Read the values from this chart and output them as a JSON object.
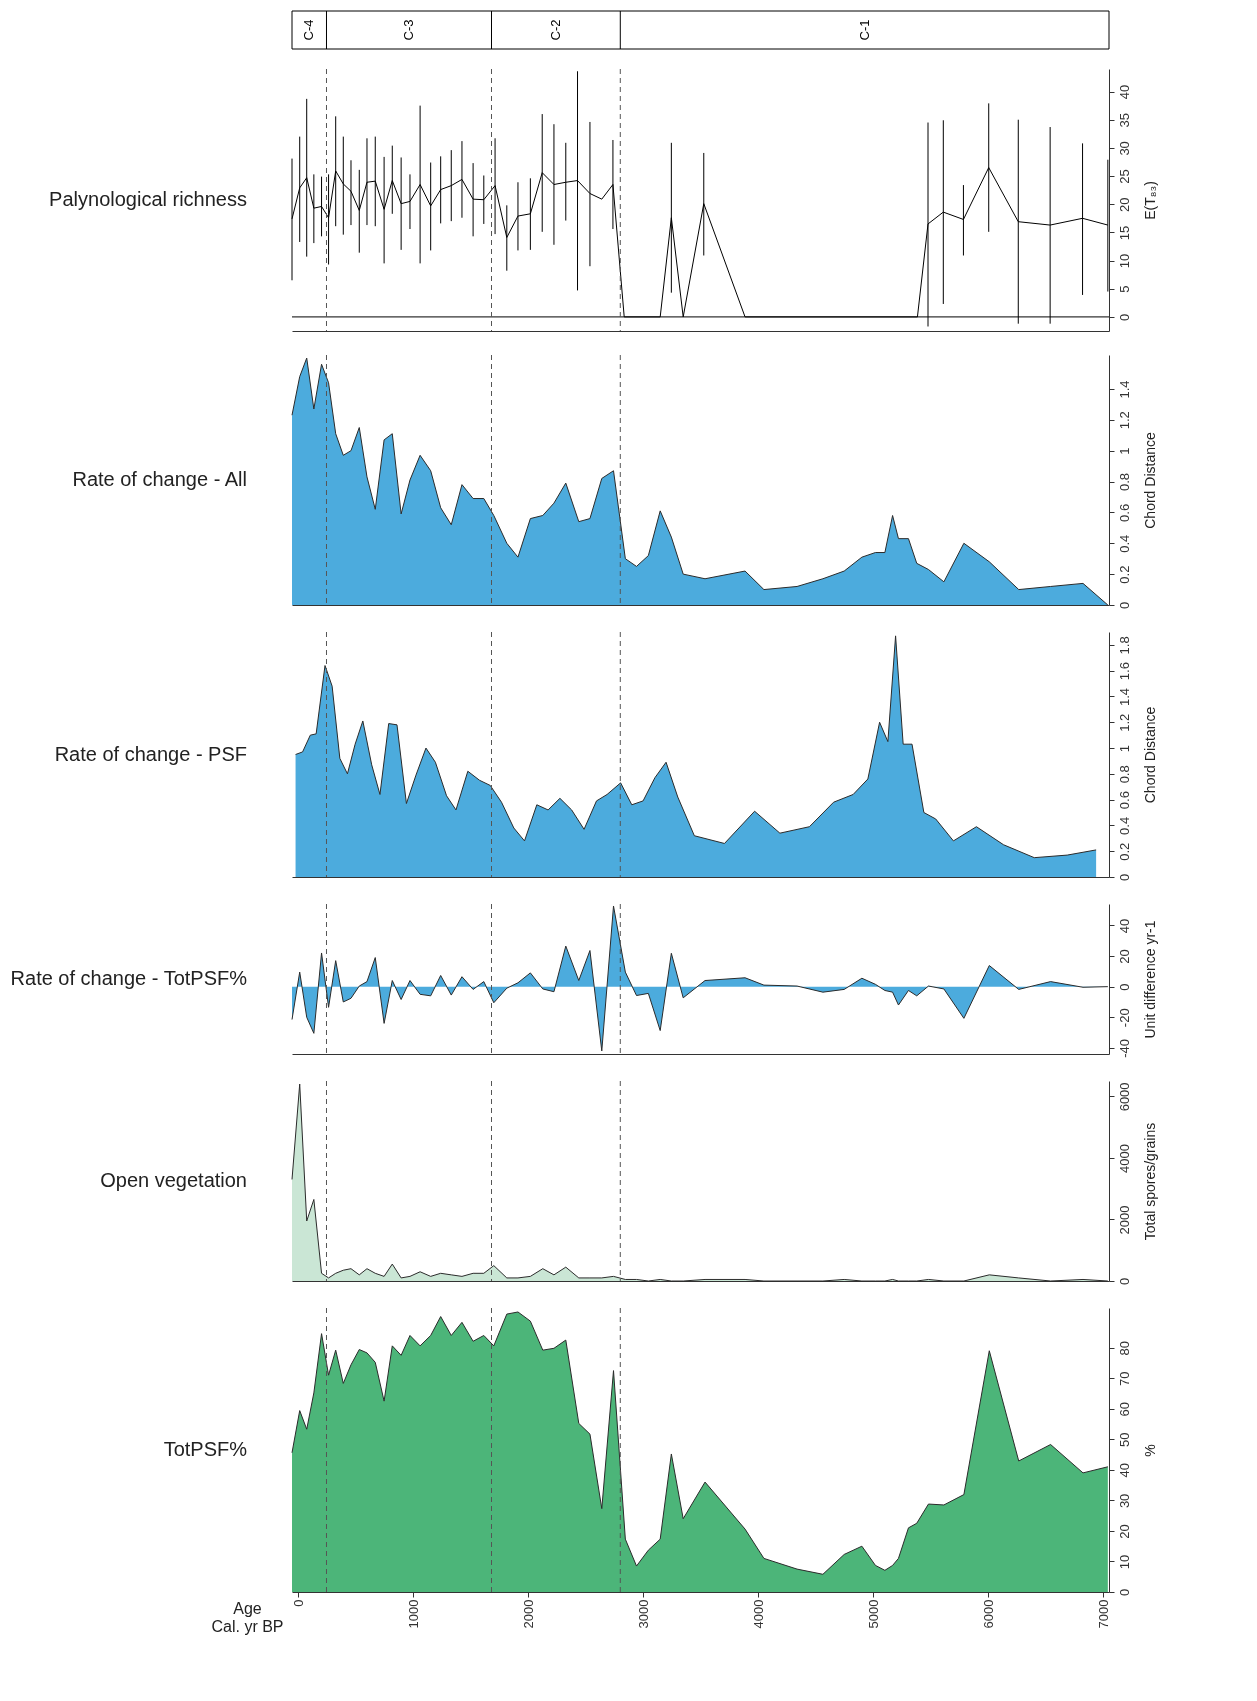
{
  "chart_data": [
    {
      "type": "line",
      "title": "Palynological richness",
      "ylabel": "E(T₈₃)",
      "tick_labels": "y",
      "color": "#000000",
      "xlim": [
        -55,
        7050
      ],
      "ylim": [
        -2.5,
        44
      ],
      "yticks": [
        0,
        5,
        10,
        15,
        20,
        25,
        30,
        35,
        40
      ],
      "annotations": [
        "C-4",
        "C-3",
        "C-2",
        "C-1"
      ],
      "x": [
        -55,
        12,
        73,
        135,
        202,
        263,
        325,
        391,
        458,
        530,
        597,
        669,
        746,
        817,
        894,
        971,
        1059,
        1151,
        1238,
        1330,
        1423,
        1520,
        1613,
        1711,
        1813,
        1910,
        2018,
        2121,
        2223,
        2326,
        2428,
        2536,
        2639,
        2736,
        2834,
        3147,
        3244,
        3347,
        3526,
        3885,
        5384,
        5476,
        5609,
        5784,
        6004,
        6261,
        6538,
        6820,
        7040
      ],
      "values": [
        17.4,
        22.9,
        24.7,
        19.3,
        19.6,
        17.6,
        25.9,
        23.6,
        22.3,
        18.9,
        23.9,
        24.1,
        19.1,
        24.2,
        20.1,
        20.5,
        23.5,
        19.7,
        22.6,
        23.3,
        24.4,
        20.9,
        20.8,
        23.3,
        14.1,
        17.9,
        18.3,
        25.6,
        23.5,
        23.9,
        24.2,
        21.9,
        20.9,
        23.5,
        0,
        0,
        17.6,
        0,
        20.1,
        0,
        0,
        16.5,
        18.6,
        17.3,
        26.5,
        16.9,
        16.3,
        17.5,
        16.3
      ],
      "errors": [
        [
          6.5,
          28.1
        ],
        [
          13.3,
          32
        ],
        [
          10.7,
          38.7
        ],
        [
          13.1,
          25.3
        ],
        [
          14.3,
          24.9
        ],
        [
          9.3,
          25.3
        ],
        [
          16.1,
          35.6
        ],
        [
          14.6,
          32
        ],
        [
          16.3,
          27.8
        ],
        [
          11.4,
          26.1
        ],
        [
          16.3,
          31.7
        ],
        [
          16.1,
          32
        ],
        [
          9.5,
          28.4
        ],
        [
          18.3,
          30.4
        ],
        [
          11.9,
          28.3
        ],
        [
          15.6,
          25.3
        ],
        [
          9.5,
          37.5
        ],
        [
          11.8,
          27.4
        ],
        [
          16.6,
          28.5
        ],
        [
          17,
          29.6
        ],
        [
          17.6,
          31.2
        ],
        [
          14.3,
          27.3
        ],
        [
          16.5,
          25.1
        ],
        [
          14.7,
          31.7
        ],
        [
          8.2,
          19.8
        ],
        [
          11.8,
          23.9
        ],
        [
          11.9,
          24.6
        ],
        [
          15.1,
          36
        ],
        [
          12.8,
          34.2
        ],
        [
          17.1,
          30.9
        ],
        [
          4.7,
          43.6
        ],
        [
          9,
          34.6
        ],
        null,
        [
          15.6,
          31.4
        ],
        null,
        null,
        [
          4.3,
          30.9
        ],
        null,
        [
          10.9,
          29.1
        ],
        null,
        null,
        [
          -1.7,
          34.5
        ],
        [
          2.3,
          34.9
        ],
        [
          10.9,
          23.4
        ],
        [
          15.1,
          37.9
        ],
        [
          -1.2,
          35
        ],
        [
          -1.2,
          33.7
        ],
        [
          3.9,
          30.8
        ],
        [
          4.5,
          27.9
        ]
      ],
      "ref_lines": [
        {
          "axis": "y",
          "value": 0,
          "color": "#000000",
          "line_style": "solid"
        },
        {
          "axis": "x",
          "value": 245,
          "color": "#555555",
          "line_style": "dashed"
        },
        {
          "axis": "x",
          "value": 1680,
          "color": "#555555",
          "line_style": "dashed"
        },
        {
          "axis": "x",
          "value": 2800,
          "color": "#555555",
          "line_style": "dashed"
        }
      ]
    },
    {
      "type": "area",
      "title": "Rate of change - All",
      "ylabel": "Chord Distance",
      "tick_labels": "y",
      "color": "#0088cf",
      "xlim": [
        -55,
        7050
      ],
      "ylim": [
        0,
        1.62
      ],
      "yticks": [
        0,
        0.2,
        0.4,
        0.6,
        0.8,
        1,
        1.2,
        1.4
      ],
      "x": [
        -55,
        12,
        73,
        135,
        202,
        263,
        325,
        391,
        458,
        530,
        597,
        669,
        746,
        817,
        894,
        971,
        1059,
        1151,
        1238,
        1330,
        1423,
        1520,
        1613,
        1700,
        1813,
        1910,
        2018,
        2126,
        2223,
        2326,
        2439,
        2536,
        2639,
        2741,
        2844,
        2941,
        3044,
        3147,
        3244,
        3347,
        3537,
        3885,
        4049,
        4337,
        4562,
        4747,
        4901,
        5019,
        5101,
        5168,
        5219,
        5306,
        5378,
        5480,
        5614,
        5788,
        6009,
        6265,
        6542,
        6824,
        7040
      ],
      "values": [
        1.23,
        1.48,
        1.6,
        1.27,
        1.56,
        1.44,
        1.11,
        0.97,
        1.0,
        1.15,
        0.83,
        0.62,
        1.07,
        1.11,
        0.59,
        0.81,
        0.97,
        0.87,
        0.63,
        0.52,
        0.78,
        0.69,
        0.69,
        0.58,
        0.4,
        0.31,
        0.56,
        0.58,
        0.66,
        0.79,
        0.54,
        0.56,
        0.82,
        0.87,
        0.3,
        0.25,
        0.32,
        0.61,
        0.44,
        0.2,
        0.17,
        0.22,
        0.1,
        0.12,
        0.17,
        0.22,
        0.31,
        0.34,
        0.34,
        0.58,
        0.43,
        0.43,
        0.27,
        0.23,
        0.15,
        0.4,
        0.28,
        0.1,
        0.12,
        0.14,
        0
      ],
      "ref_lines": [
        {
          "axis": "x",
          "value": 245,
          "color": "#555555",
          "line_style": "dashed"
        },
        {
          "axis": "x",
          "value": 1680,
          "color": "#555555",
          "line_style": "dashed"
        },
        {
          "axis": "x",
          "value": 2800,
          "color": "#555555",
          "line_style": "dashed"
        }
      ]
    },
    {
      "type": "area",
      "title": "Rate of change - PSF",
      "ylabel": "Chord Distance",
      "tick_labels": "y",
      "color": "#0088cf",
      "xlim": [
        -55,
        7050
      ],
      "ylim": [
        0,
        1.9
      ],
      "yticks": [
        0,
        0.2,
        0.4,
        0.6,
        0.8,
        1,
        1.2,
        1.4,
        1.6,
        1.8
      ],
      "x": [
        -24,
        37,
        104,
        155,
        232,
        294,
        361,
        427,
        494,
        561,
        638,
        710,
        786,
        858,
        940,
        1023,
        1110,
        1192,
        1289,
        1371,
        1474,
        1576,
        1669,
        1767,
        1874,
        1967,
        2074,
        2172,
        2275,
        2377,
        2485,
        2593,
        2685,
        2803,
        2900,
        2998,
        3101,
        3198,
        3300,
        3444,
        3706,
        3968,
        4188,
        4445,
        4655,
        4825,
        4953,
        5055,
        5127,
        5194,
        5260,
        5337,
        5440,
        5543,
        5697,
        5897,
        6133,
        6400,
        6687,
        6938
      ],
      "values": [
        0.95,
        0.97,
        1.1,
        1.11,
        1.64,
        1.48,
        0.92,
        0.8,
        1.03,
        1.21,
        0.87,
        0.64,
        1.19,
        1.18,
        0.57,
        0.79,
        1.0,
        0.89,
        0.63,
        0.52,
        0.82,
        0.75,
        0.71,
        0.58,
        0.38,
        0.28,
        0.56,
        0.52,
        0.61,
        0.52,
        0.37,
        0.59,
        0.64,
        0.73,
        0.56,
        0.59,
        0.77,
        0.89,
        0.62,
        0.32,
        0.26,
        0.51,
        0.34,
        0.39,
        0.58,
        0.64,
        0.76,
        1.2,
        1.05,
        1.87,
        1.03,
        1.03,
        0.5,
        0.45,
        0.28,
        0.39,
        0.25,
        0.15,
        0.17,
        0.21
      ],
      "ref_lines": [
        {
          "axis": "x",
          "value": 245,
          "color": "#555555",
          "line_style": "dashed"
        },
        {
          "axis": "x",
          "value": 1680,
          "color": "#555555",
          "line_style": "dashed"
        },
        {
          "axis": "x",
          "value": 2800,
          "color": "#555555",
          "line_style": "dashed"
        }
      ]
    },
    {
      "type": "area",
      "title": "Rate of change - TotPSF%",
      "ylabel": "Unit difference yr-1",
      "tick_labels": "y",
      "color": "#0088cf",
      "xlim": [
        -55,
        7050
      ],
      "ylim": [
        -44,
        54
      ],
      "yticks": [
        -40,
        -20,
        0,
        20,
        40
      ],
      "x": [
        -55,
        12,
        73,
        135,
        202,
        263,
        325,
        391,
        458,
        530,
        597,
        669,
        746,
        817,
        894,
        971,
        1059,
        1151,
        1238,
        1330,
        1423,
        1520,
        1613,
        1700,
        1813,
        1910,
        2018,
        2126,
        2223,
        2326,
        2439,
        2536,
        2639,
        2741,
        2844,
        2941,
        3044,
        3147,
        3244,
        3347,
        3537,
        3885,
        4049,
        4337,
        4562,
        4747,
        4901,
        5019,
        5101,
        5168,
        5219,
        5306,
        5378,
        5480,
        5614,
        5788,
        6009,
        6265,
        6542,
        6824,
        7040
      ],
      "values": [
        -21.5,
        9.5,
        -20,
        -30.5,
        22,
        -13.5,
        17,
        -10,
        -7.6,
        0.4,
        3.3,
        19,
        -24,
        4,
        -8.4,
        4,
        -5,
        -6,
        7.3,
        -5.5,
        6.5,
        -1.8,
        3.3,
        -10.5,
        -1,
        2.5,
        9,
        -1.5,
        -3.3,
        26.5,
        4,
        23.6,
        -42,
        52.7,
        9.5,
        -5.8,
        -4.4,
        -28.7,
        21.8,
        -7.3,
        4,
        5.8,
        1,
        0.4,
        -3.6,
        -1.8,
        5.5,
        1.5,
        -2.5,
        -3.6,
        -12,
        -2.5,
        -6,
        0.4,
        -1.5,
        -20.7,
        13.8,
        -1.8,
        3.3,
        -0.4,
        0
      ],
      "ref_lines": [
        {
          "axis": "x",
          "value": 245,
          "color": "#555555",
          "line_style": "dashed"
        },
        {
          "axis": "x",
          "value": 1680,
          "color": "#555555",
          "line_style": "dashed"
        },
        {
          "axis": "x",
          "value": 2800,
          "color": "#555555",
          "line_style": "dashed"
        }
      ]
    },
    {
      "type": "area",
      "title": "Open vegetation",
      "ylabel": "Total spores/grains",
      "tick_labels": "y",
      "color": "#b3dcc3",
      "xlim": [
        -55,
        7050
      ],
      "ylim": [
        0,
        6500
      ],
      "yticks": [
        0,
        2000,
        4000,
        6000
      ],
      "x": [
        -55,
        12,
        73,
        135,
        202,
        263,
        325,
        391,
        458,
        530,
        597,
        669,
        746,
        817,
        894,
        971,
        1059,
        1151,
        1238,
        1330,
        1423,
        1520,
        1613,
        1700,
        1813,
        1910,
        2018,
        2126,
        2223,
        2326,
        2439,
        2536,
        2639,
        2741,
        2844,
        2941,
        3044,
        3147,
        3244,
        3347,
        3537,
        3885,
        4049,
        4337,
        4562,
        4747,
        4901,
        5019,
        5101,
        5168,
        5219,
        5306,
        5378,
        5480,
        5614,
        5788,
        6009,
        6265,
        6542,
        6824,
        7040
      ],
      "values": [
        3300,
        6400,
        1950,
        2650,
        250,
        100,
        250,
        350,
        400,
        200,
        400,
        250,
        150,
        550,
        100,
        150,
        300,
        150,
        250,
        200,
        150,
        250,
        250,
        500,
        100,
        100,
        150,
        400,
        200,
        450,
        100,
        100,
        100,
        150,
        50,
        50,
        0,
        50,
        0,
        0,
        50,
        50,
        0,
        0,
        0,
        50,
        0,
        0,
        0,
        50,
        0,
        0,
        0,
        50,
        0,
        0,
        200,
        100,
        0,
        50,
        0
      ],
      "ref_lines": [
        {
          "axis": "x",
          "value": 245,
          "color": "#555555",
          "line_style": "dashed"
        },
        {
          "axis": "x",
          "value": 1680,
          "color": "#555555",
          "line_style": "dashed"
        },
        {
          "axis": "x",
          "value": 2800,
          "color": "#555555",
          "line_style": "dashed"
        }
      ]
    },
    {
      "type": "area",
      "title": "TotPSF%",
      "ylabel": "%",
      "xlabel": "Age",
      "annotations": [
        "Cal. yr BP"
      ],
      "color": "#009640",
      "xlim": [
        -55,
        7050
      ],
      "xticks": [
        0,
        1000,
        2000,
        3000,
        4000,
        5000,
        6000,
        7000
      ],
      "ylim": [
        0,
        93
      ],
      "yticks": [
        0,
        10,
        20,
        30,
        40,
        50,
        60,
        70,
        80
      ],
      "x": [
        -55,
        12,
        73,
        135,
        202,
        263,
        325,
        391,
        458,
        530,
        597,
        669,
        746,
        817,
        894,
        971,
        1059,
        1151,
        1238,
        1330,
        1423,
        1520,
        1613,
        1700,
        1813,
        1910,
        2018,
        2126,
        2223,
        2326,
        2439,
        2536,
        2639,
        2741,
        2844,
        2941,
        3044,
        3147,
        3244,
        3347,
        3537,
        3885,
        4049,
        4337,
        4562,
        4747,
        4901,
        5019,
        5101,
        5168,
        5219,
        5306,
        5378,
        5480,
        5614,
        5788,
        6009,
        6265,
        6542,
        6824,
        7040
      ],
      "values": [
        45.6,
        59.4,
        53.3,
        65.2,
        84.6,
        71,
        79.2,
        68.3,
        74.4,
        79.4,
        78.3,
        75.2,
        62.5,
        80.6,
        77.5,
        84,
        80.6,
        84,
        90.2,
        84,
        88.3,
        82.1,
        84,
        80.6,
        91,
        91.7,
        88.7,
        79.2,
        79.8,
        82.5,
        55.2,
        51.7,
        27.3,
        72.5,
        17.3,
        8.5,
        13.7,
        17.3,
        45.2,
        24,
        36,
        20.6,
        11,
        7.5,
        5.8,
        12.3,
        15,
        8.7,
        7.1,
        8.7,
        11,
        21,
        22.5,
        28.8,
        28.5,
        31.9,
        79,
        42.9,
        48.3,
        39,
        41
      ],
      "ref_lines": [
        {
          "axis": "x",
          "value": 245,
          "color": "#555555",
          "line_style": "dashed"
        },
        {
          "axis": "x",
          "value": 1680,
          "color": "#555555",
          "line_style": "dashed"
        },
        {
          "axis": "x",
          "value": 2800,
          "color": "#555555",
          "line_style": "dashed"
        }
      ]
    }
  ]
}
